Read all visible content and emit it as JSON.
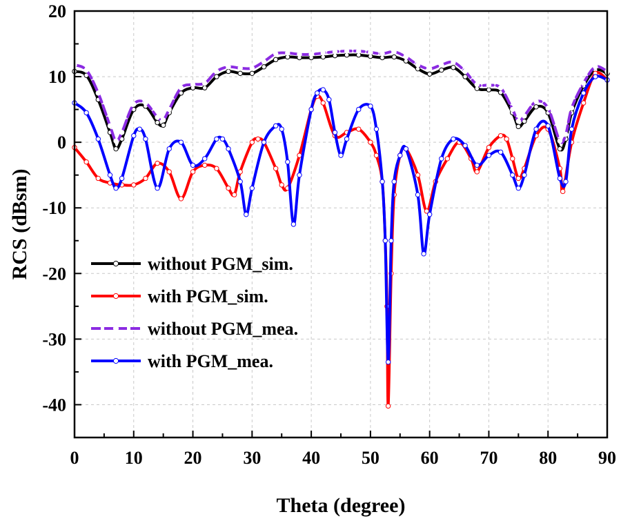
{
  "chart_data": {
    "type": "line",
    "title": "",
    "xlabel": "Theta (degree)",
    "ylabel": "RCS (dBsm)",
    "xlim": [
      0,
      90
    ],
    "ylim": [
      -45,
      20
    ],
    "xticks": [
      0,
      10,
      20,
      30,
      40,
      50,
      60,
      70,
      80,
      90
    ],
    "yticks": [
      20,
      10,
      0,
      -10,
      -20,
      -30,
      -40
    ],
    "grid": true,
    "legend_position": "lower-left",
    "series": [
      {
        "name": "without PGM_sim.",
        "color": "#000000",
        "dash": "solid",
        "x": [
          0,
          2,
          4,
          6,
          7,
          8,
          10,
          12,
          14,
          15,
          16,
          18,
          20,
          22,
          24,
          26,
          28,
          30,
          32,
          34,
          36,
          38,
          40,
          42,
          44,
          46,
          48,
          50,
          52,
          54,
          56,
          58,
          60,
          62,
          64,
          66,
          68,
          70,
          72,
          74,
          75,
          76,
          78,
          80,
          82,
          83,
          84,
          86,
          88,
          90
        ],
        "y": [
          10.8,
          10.2,
          6.5,
          1.5,
          -1.0,
          0.5,
          5.0,
          5.5,
          3.0,
          2.6,
          4.5,
          7.5,
          8.3,
          8.3,
          10.0,
          10.8,
          10.5,
          10.5,
          11.5,
          12.6,
          13.0,
          12.9,
          12.9,
          13.0,
          13.2,
          13.3,
          13.3,
          13.1,
          12.9,
          13.0,
          12.4,
          11.2,
          10.4,
          11.0,
          11.4,
          10.0,
          8.2,
          8.0,
          7.6,
          4.5,
          2.4,
          3.2,
          5.4,
          4.5,
          -1.0,
          0.5,
          4.5,
          8.6,
          11.0,
          10.5
        ]
      },
      {
        "name": "with PGM_sim.",
        "color": "#ff0000",
        "dash": "solid",
        "x": [
          0,
          2,
          4,
          6,
          8,
          10,
          12,
          14,
          16,
          18,
          20,
          22,
          24,
          26,
          27,
          28,
          30,
          31,
          32,
          34,
          35,
          36,
          38,
          40,
          41,
          42,
          44,
          46,
          48,
          50,
          51,
          52,
          52.5,
          52.8,
          53,
          53.5,
          54,
          55,
          56,
          58,
          59.5,
          61,
          63,
          65,
          67,
          68,
          70,
          72,
          73,
          74,
          75,
          76,
          78,
          80,
          82,
          82.5,
          84,
          86,
          88,
          90
        ],
        "y": [
          -0.8,
          -3.0,
          -5.5,
          -6.2,
          -6.5,
          -6.5,
          -5.5,
          -3.2,
          -4.5,
          -8.6,
          -4.5,
          -3.5,
          -4.0,
          -7.0,
          -8.0,
          -4.5,
          0.0,
          0.5,
          0.0,
          -4.0,
          -6.5,
          -7.0,
          -2.0,
          5.0,
          7.0,
          6.0,
          1.0,
          1.5,
          2.0,
          0.0,
          -2.0,
          -6.0,
          -15.0,
          -25.0,
          -40.2,
          -20.0,
          -8.0,
          -2.0,
          -1.0,
          -5.0,
          -10.5,
          -6.0,
          -2.5,
          0.0,
          -2.5,
          -4.5,
          -0.8,
          1.0,
          0.5,
          -2.5,
          -5.5,
          -4.0,
          1.0,
          2.0,
          -4.0,
          -7.5,
          0.0,
          6.0,
          10.5,
          9.5
        ]
      },
      {
        "name": "without PGM_mea.",
        "color": "#8b2be2",
        "dash": "dashed",
        "x": [
          0,
          2,
          4,
          6,
          7,
          8,
          10,
          12,
          14,
          15,
          16,
          18,
          20,
          22,
          24,
          26,
          28,
          30,
          32,
          34,
          36,
          38,
          40,
          42,
          44,
          46,
          48,
          50,
          52,
          54,
          56,
          58,
          60,
          62,
          64,
          66,
          68,
          70,
          72,
          74,
          75,
          76,
          78,
          80,
          82,
          83,
          84,
          86,
          88,
          90
        ],
        "y": [
          11.8,
          11.0,
          7.5,
          2.5,
          0.2,
          1.5,
          5.8,
          6.0,
          3.8,
          3.4,
          5.0,
          8.3,
          8.8,
          9.0,
          10.8,
          11.5,
          11.3,
          11.3,
          12.3,
          13.5,
          13.6,
          13.4,
          13.4,
          13.6,
          13.8,
          13.9,
          13.9,
          13.7,
          13.5,
          13.8,
          13.0,
          11.8,
          11.2,
          11.8,
          12.2,
          10.8,
          8.8,
          8.7,
          8.3,
          5.0,
          3.2,
          4.0,
          6.2,
          5.2,
          0.2,
          1.2,
          5.2,
          9.0,
          11.5,
          10.8
        ]
      },
      {
        "name": "with PGM_mea.",
        "color": "#0000ff",
        "dash": "solid",
        "x": [
          0,
          2,
          4,
          6,
          7,
          8,
          10,
          11,
          12,
          14,
          16,
          18,
          20,
          22,
          24,
          25,
          26,
          28,
          29,
          30,
          32,
          34,
          35,
          36,
          37,
          38,
          40,
          41,
          42,
          43,
          44,
          45,
          46,
          48,
          50,
          51,
          52,
          52.5,
          53,
          53.5,
          54,
          55,
          56,
          58,
          59,
          60,
          62,
          64,
          66,
          68,
          70,
          72,
          74,
          75,
          76,
          78,
          80,
          82,
          83,
          84,
          86,
          88,
          90
        ],
        "y": [
          6.0,
          4.5,
          0.5,
          -5.0,
          -7.0,
          -5.5,
          1.0,
          2.0,
          0.5,
          -7.0,
          -1.0,
          0.0,
          -3.5,
          -2.5,
          0.5,
          0.5,
          -1.0,
          -6.0,
          -11.0,
          -7.0,
          0.0,
          2.5,
          2.0,
          -3.0,
          -12.5,
          -5.0,
          5.0,
          7.5,
          8.0,
          6.5,
          1.5,
          -2.0,
          0.5,
          5.0,
          5.5,
          2.0,
          -6.0,
          -15.0,
          -33.5,
          -15.0,
          -6.0,
          -2.0,
          -1.0,
          -8.0,
          -17.0,
          -11.0,
          -2.5,
          0.5,
          -0.5,
          -3.5,
          -2.0,
          -1.5,
          -5.0,
          -7.0,
          -5.0,
          2.0,
          2.5,
          -5.5,
          -6.0,
          2.0,
          7.5,
          10.0,
          9.5
        ]
      }
    ]
  }
}
